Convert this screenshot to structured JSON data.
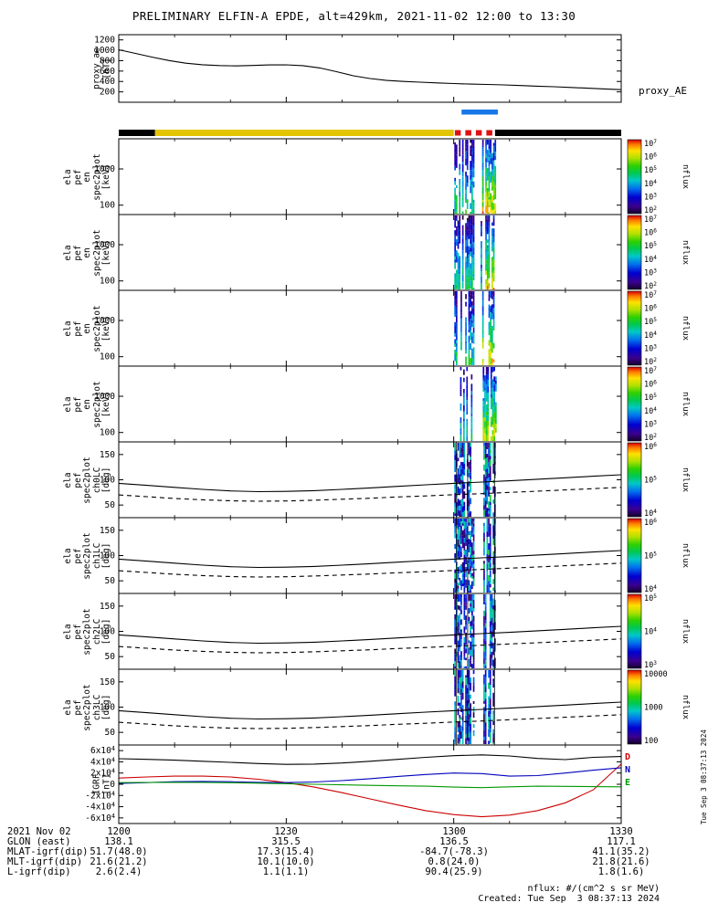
{
  "title": "PRELIMINARY ELFIN-A EPDE, alt=429km, 2021-11-02 12:00 to 13:30",
  "footer": {
    "nflux_units": "nflux: #/(cm^2 s sr MeV)",
    "created": "Created: Tue Sep  3 08:37:13 2024"
  },
  "side_timestamp": "Tue Sep  3 08:37:13 2024",
  "bottom_axis": {
    "rows": [
      {
        "label": "2021 Nov 02",
        "values": [
          "1200",
          "1230",
          "1300",
          "1330"
        ]
      },
      {
        "label": "GLON (east)",
        "values": [
          "138.1",
          "315.5",
          "136.5",
          "117.1"
        ]
      },
      {
        "label": "MLAT-igrf(dip)",
        "values": [
          "51.7(48.0)",
          "17.3(15.4)",
          "-84.7(-78.3)",
          "41.1(35.2)"
        ]
      },
      {
        "label": "MLT-igrf(dip)",
        "values": [
          "21.6(21.2)",
          "10.1(10.0)",
          "0.8(24.0)",
          "21.8(21.6)"
        ]
      },
      {
        "label": "L-igrf(dip)",
        "values": [
          "2.6(2.4)",
          "1.1(1.1)",
          "90.4(25.9)",
          "1.8(1.6)"
        ]
      }
    ]
  },
  "chart_data": {
    "time_axis": {
      "t_start_min": 0,
      "t_end_min": 90,
      "major_ticks_min": [
        0,
        30,
        60,
        90
      ],
      "minor_step_min": 10,
      "tick_labels": [
        "1200",
        "1230",
        "1300",
        "1330"
      ]
    },
    "mode_bar": {
      "segments": [
        {
          "t0": 0,
          "t1": 6.5,
          "color": "#000000"
        },
        {
          "t0": 6.5,
          "t1": 60.0,
          "color": "#e3c400"
        },
        {
          "t0": 67.4,
          "t1": 90,
          "color": "#000000"
        }
      ],
      "dashed": {
        "t0": 60.2,
        "t1": 67.2,
        "color": "#dd1111"
      },
      "blue": {
        "t0": 61.4,
        "t1": 67.9,
        "color": "#1777e8"
      }
    },
    "lc_lines": {
      "t_min": [
        0,
        5,
        10,
        15,
        20,
        25,
        30,
        35,
        40,
        45,
        50,
        55,
        60,
        65,
        70,
        75,
        80,
        85,
        90
      ],
      "solid_deg": [
        93,
        89,
        85,
        81,
        78,
        76.5,
        77,
        78.5,
        81,
        84,
        87,
        90,
        93,
        95.5,
        98,
        101,
        104,
        107,
        110
      ],
      "dashed_deg": [
        70,
        66.5,
        63,
        60.5,
        58.5,
        57.5,
        58,
        59.5,
        61.5,
        63.5,
        66,
        68,
        70.5,
        72.5,
        75,
        77.5,
        80,
        82.5,
        85
      ]
    },
    "panels": [
      {
        "id": "proxy_ae",
        "type": "line",
        "ylabel_lines": [
          "proxy_ae",
          "[nT]"
        ],
        "right_label": "proxy_AE",
        "ylim": [
          0,
          1300
        ],
        "yticks": [
          {
            "v": 200,
            "label": "200"
          },
          {
            "v": 400,
            "label": "400"
          },
          {
            "v": 600,
            "label": "600"
          },
          {
            "v": 800,
            "label": "800"
          },
          {
            "v": 1000,
            "label": "1000"
          },
          {
            "v": 1200,
            "label": "1200"
          }
        ],
        "t_min": [
          0,
          3,
          6,
          9,
          12,
          15,
          18,
          21,
          24,
          27,
          30,
          33,
          36,
          39,
          42,
          45,
          48,
          51,
          54,
          57,
          60,
          63,
          66,
          69,
          72,
          75,
          78,
          81,
          84,
          87,
          90
        ],
        "values": [
          1010,
          940,
          868,
          802,
          752,
          722,
          706,
          700,
          708,
          718,
          720,
          704,
          660,
          588,
          510,
          456,
          420,
          400,
          386,
          372,
          360,
          350,
          342,
          333,
          322,
          310,
          298,
          285,
          270,
          256,
          242
        ]
      },
      {
        "id": "en_spec_a",
        "type": "spectrogram",
        "ylabel_lines": [
          "ela",
          "pef",
          "en",
          "spec2plot",
          "[keV]"
        ],
        "yscale": "log",
        "ylim": [
          55,
          6800
        ],
        "yticks": [
          {
            "v": 100,
            "label": "100"
          },
          {
            "v": 1000,
            "label": "1000"
          }
        ],
        "colorbar": {
          "tick_labels": [
            "10^7",
            "10^6",
            "10^5",
            "10^4",
            "10^3",
            "10^2"
          ],
          "label": "nflux"
        },
        "bursts": [
          {
            "t0": 60.1,
            "t1": 63.7,
            "vmax": 0.55,
            "p": 0.8
          },
          {
            "t0": 63.7,
            "t1": 65.1,
            "vmax": 0.5,
            "p": 0.12
          },
          {
            "t0": 65.1,
            "t1": 67.6,
            "vmax": 0.85,
            "p": 0.85
          }
        ]
      },
      {
        "id": "en_spec_b",
        "type": "spectrogram",
        "ylabel_lines": [
          "ela",
          "pef",
          "en",
          "spec2plot",
          "[keV]"
        ],
        "yscale": "log",
        "ylim": [
          55,
          6800
        ],
        "yticks": [
          {
            "v": 100,
            "label": "100"
          },
          {
            "v": 1000,
            "label": "1000"
          }
        ],
        "colorbar": {
          "tick_labels": [
            "10^7",
            "10^6",
            "10^5",
            "10^4",
            "10^3",
            "10^2"
          ],
          "label": "nflux"
        },
        "bursts": [
          {
            "t0": 60.1,
            "t1": 63.7,
            "vmax": 0.55,
            "p": 0.75
          },
          {
            "t0": 63.7,
            "t1": 65.1,
            "vmax": 0.5,
            "p": 0.12
          },
          {
            "t0": 65.1,
            "t1": 67.6,
            "vmax": 0.85,
            "p": 0.8
          }
        ]
      },
      {
        "id": "en_spec_c",
        "type": "spectrogram",
        "ylabel_lines": [
          "ela",
          "pef",
          "en",
          "spec2plot",
          "[keV]"
        ],
        "yscale": "log",
        "ylim": [
          55,
          6800
        ],
        "yticks": [
          {
            "v": 100,
            "label": "100"
          },
          {
            "v": 1000,
            "label": "1000"
          }
        ],
        "colorbar": {
          "tick_labels": [
            "10^7",
            "10^6",
            "10^5",
            "10^4",
            "10^3",
            "10^2"
          ],
          "label": "nflux"
        },
        "bursts": [
          {
            "t0": 60.1,
            "t1": 63.7,
            "vmax": 0.55,
            "p": 0.75
          },
          {
            "t0": 63.7,
            "t1": 65.1,
            "vmax": 0.5,
            "p": 0.12
          },
          {
            "t0": 65.1,
            "t1": 67.6,
            "vmax": 0.85,
            "p": 0.8
          }
        ]
      },
      {
        "id": "en_spec_d",
        "type": "spectrogram",
        "ylabel_lines": [
          "ela",
          "pef",
          "en",
          "spec2plot",
          "[keV]"
        ],
        "yscale": "log",
        "ylim": [
          55,
          6800
        ],
        "yticks": [
          {
            "v": 100,
            "label": "100"
          },
          {
            "v": 1000,
            "label": "1000"
          }
        ],
        "colorbar": {
          "tick_labels": [
            "10^7",
            "10^6",
            "10^5",
            "10^4",
            "10^3",
            "10^2"
          ],
          "label": "nflux"
        },
        "bursts": [
          {
            "t0": 60.3,
            "t1": 63.5,
            "vmax": 0.5,
            "p": 0.5
          },
          {
            "t0": 63.7,
            "t1": 65.1,
            "vmax": 0.45,
            "p": 0.1
          },
          {
            "t0": 65.2,
            "t1": 67.5,
            "vmax": 0.8,
            "p": 0.6
          }
        ]
      },
      {
        "id": "pa_spec_ch0LC",
        "type": "spectrogram+lines",
        "ylabel_lines": [
          "ela",
          "pef",
          "spec2plot",
          "ch0LC",
          "[deg]"
        ],
        "ylim": [
          25,
          175
        ],
        "yticks": [
          {
            "v": 50,
            "label": "50"
          },
          {
            "v": 100,
            "label": "100"
          },
          {
            "v": 150,
            "label": "150"
          }
        ],
        "colorbar": {
          "tick_labels": [
            "10^6",
            "10^5",
            "10^4"
          ],
          "label": "nflux"
        },
        "bursts": [
          {
            "t0": 60.1,
            "t1": 63.5,
            "vmax": 0.5,
            "p": 0.85,
            "dark": true
          },
          {
            "t0": 65.3,
            "t1": 67.5,
            "vmax": 0.55,
            "p": 0.7,
            "dark": true
          }
        ],
        "vlines_min": [
          60.5,
          62.5,
          67.3
        ],
        "uses_lc_lines": true
      },
      {
        "id": "pa_spec_ch1LC",
        "type": "spectrogram+lines",
        "ylabel_lines": [
          "ela",
          "pef",
          "spec2plot",
          "ch1LC",
          "[deg]"
        ],
        "ylim": [
          25,
          175
        ],
        "yticks": [
          {
            "v": 50,
            "label": "50"
          },
          {
            "v": 100,
            "label": "100"
          },
          {
            "v": 150,
            "label": "150"
          }
        ],
        "colorbar": {
          "tick_labels": [
            "10^6",
            "10^5",
            "10^4"
          ],
          "label": "nflux"
        },
        "bursts": [
          {
            "t0": 60.1,
            "t1": 63.5,
            "vmax": 0.5,
            "p": 0.8,
            "dark": true
          },
          {
            "t0": 65.3,
            "t1": 67.5,
            "vmax": 0.55,
            "p": 0.65,
            "dark": true
          }
        ],
        "vlines_min": [
          60.5,
          62.5,
          67.3
        ],
        "uses_lc_lines": true
      },
      {
        "id": "pa_spec_ch2LC",
        "type": "spectrogram+lines",
        "ylabel_lines": [
          "ela",
          "pef",
          "spec2plot",
          "ch2LC",
          "[deg]"
        ],
        "ylim": [
          25,
          175
        ],
        "yticks": [
          {
            "v": 50,
            "label": "50"
          },
          {
            "v": 100,
            "label": "100"
          },
          {
            "v": 150,
            "label": "150"
          }
        ],
        "colorbar": {
          "tick_labels": [
            "10^5",
            "10^4",
            "10^3"
          ],
          "label": "nflux"
        },
        "bursts": [
          {
            "t0": 60.1,
            "t1": 63.5,
            "vmax": 0.45,
            "p": 0.75,
            "dark": true
          },
          {
            "t0": 65.3,
            "t1": 67.5,
            "vmax": 0.5,
            "p": 0.6,
            "dark": true
          }
        ],
        "vlines_min": [
          60.5,
          62.5,
          67.3
        ],
        "uses_lc_lines": true
      },
      {
        "id": "pa_spec_ch3LC",
        "type": "spectrogram+lines",
        "ylabel_lines": [
          "ela",
          "pef",
          "spec2plot",
          "ch3LC",
          "[deg]"
        ],
        "ylim": [
          25,
          175
        ],
        "yticks": [
          {
            "v": 50,
            "label": "50"
          },
          {
            "v": 100,
            "label": "100"
          },
          {
            "v": 150,
            "label": "150"
          }
        ],
        "colorbar": {
          "tick_labels": [
            "10000",
            "1000",
            "100"
          ],
          "label": "nflux"
        },
        "bursts": [
          {
            "t0": 60.1,
            "t1": 63.5,
            "vmax": 0.5,
            "p": 0.85,
            "dark": true
          },
          {
            "t0": 65.3,
            "t1": 67.5,
            "vmax": 0.5,
            "p": 0.6,
            "dark": true
          }
        ],
        "vlines_min": [
          60.5,
          62.5,
          67.3
        ],
        "uses_lc_lines": true
      },
      {
        "id": "igrf",
        "type": "line",
        "ylabel_lines": [
          "IGRF",
          "[nT]"
        ],
        "ylim": [
          -70000,
          70000
        ],
        "yticks": [
          {
            "v": 60000,
            "label": "6x10^4"
          },
          {
            "v": 40000,
            "label": "4x10^4"
          },
          {
            "v": 20000,
            "label": "2x10^4"
          },
          {
            "v": 0,
            "label": "0"
          },
          {
            "v": -20000,
            "label": "-2x10^4"
          },
          {
            "v": -40000,
            "label": "-4x10^4"
          },
          {
            "v": -60000,
            "label": "-6x10^4"
          }
        ],
        "t_min": [
          0,
          5,
          10,
          15,
          20,
          25,
          30,
          35,
          40,
          45,
          50,
          55,
          60,
          65,
          70,
          75,
          80,
          85,
          90
        ],
        "series": [
          {
            "name": "Bt",
            "color": "#000000",
            "legend": "",
            "values": [
              45500,
              44500,
              43000,
              41000,
              39000,
              37000,
              35500,
              36000,
              38000,
              41000,
              44500,
              48000,
              51000,
              52500,
              50500,
              46000,
              44000,
              48000,
              49500
            ]
          },
          {
            "name": "D",
            "color": "#cc0000",
            "legend": "D",
            "values": [
              11000,
              13000,
              14500,
              14500,
              13000,
              9000,
              3000,
              -5000,
              -15000,
              -26000,
              -37000,
              -47000,
              -54000,
              -58000,
              -55000,
              -47000,
              -33000,
              -10000,
              36000
            ]
          },
          {
            "name": "N",
            "color": "#0000bb",
            "legend": "N",
            "values": [
              1500,
              3000,
              4500,
              5000,
              4500,
              3500,
              3000,
              4000,
              6500,
              10000,
              14000,
              17500,
              20000,
              19000,
              14500,
              15500,
              20000,
              25000,
              29500
            ]
          },
          {
            "name": "E",
            "color": "#009900",
            "legend": "E",
            "values": [
              3000,
              3300,
              3500,
              3300,
              2800,
              2000,
              1000,
              0,
              -1000,
              -2000,
              -2800,
              -3500,
              -5000,
              -6000,
              -4500,
              -3500,
              -3800,
              -4200,
              -4500
            ]
          }
        ]
      }
    ]
  }
}
